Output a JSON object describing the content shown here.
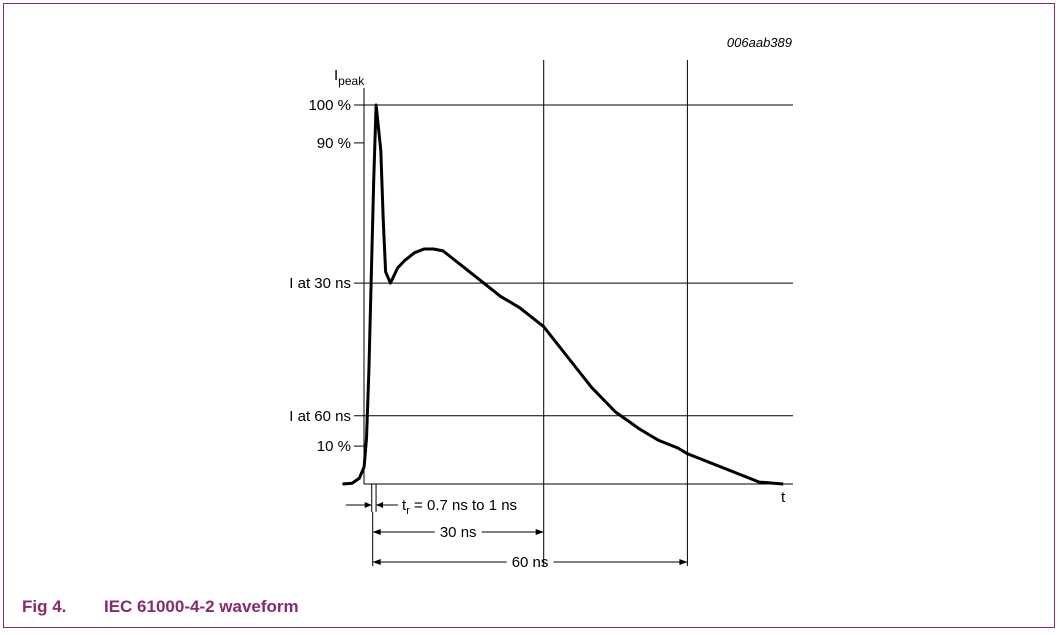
{
  "figure": {
    "code": "006aab389",
    "caption_number": "Fig 4.",
    "caption_title": "IEC 61000-4-2 waveform",
    "accent_color": "#8a2a6b"
  },
  "chart_data": {
    "type": "line",
    "ylabel": "I",
    "ylabel_sub": "peak",
    "xlabel": "t",
    "y_tick_labels": [
      "100 %",
      "90 %",
      "I at 30 ns",
      "I at 60 ns",
      "10 %"
    ],
    "y_tick_values": [
      100,
      90,
      53,
      18,
      10
    ],
    "grid": true,
    "annotations": {
      "rise_time": {
        "prefix": "t",
        "sub": "r",
        "text": " = 0.7 ns to 1 ns"
      },
      "t30": "30 ns",
      "t60": "60 ns"
    },
    "series": [
      {
        "x": [
          -12,
          -10,
          -8.5,
          -7.5,
          -7,
          -6.5,
          -6,
          -5.5,
          -5,
          -4,
          -3.5,
          -3,
          -2,
          -0.5,
          1,
          3,
          5,
          7,
          9,
          11,
          13,
          15,
          17,
          19,
          21,
          25,
          30,
          35,
          40,
          45,
          50,
          54,
          58,
          60,
          62,
          65,
          70,
          75,
          80
        ],
        "y": [
          0,
          0.2,
          1.5,
          4.5,
          12,
          30,
          55,
          80,
          100,
          88,
          70,
          56,
          53,
          57,
          59,
          61,
          62,
          62,
          61.5,
          59.5,
          57.5,
          55.5,
          53.5,
          51.5,
          49.5,
          46.5,
          41.5,
          33.5,
          25.5,
          19,
          14.5,
          11.5,
          9.5,
          8,
          7,
          5.5,
          3,
          0.5,
          0
        ]
      }
    ]
  }
}
